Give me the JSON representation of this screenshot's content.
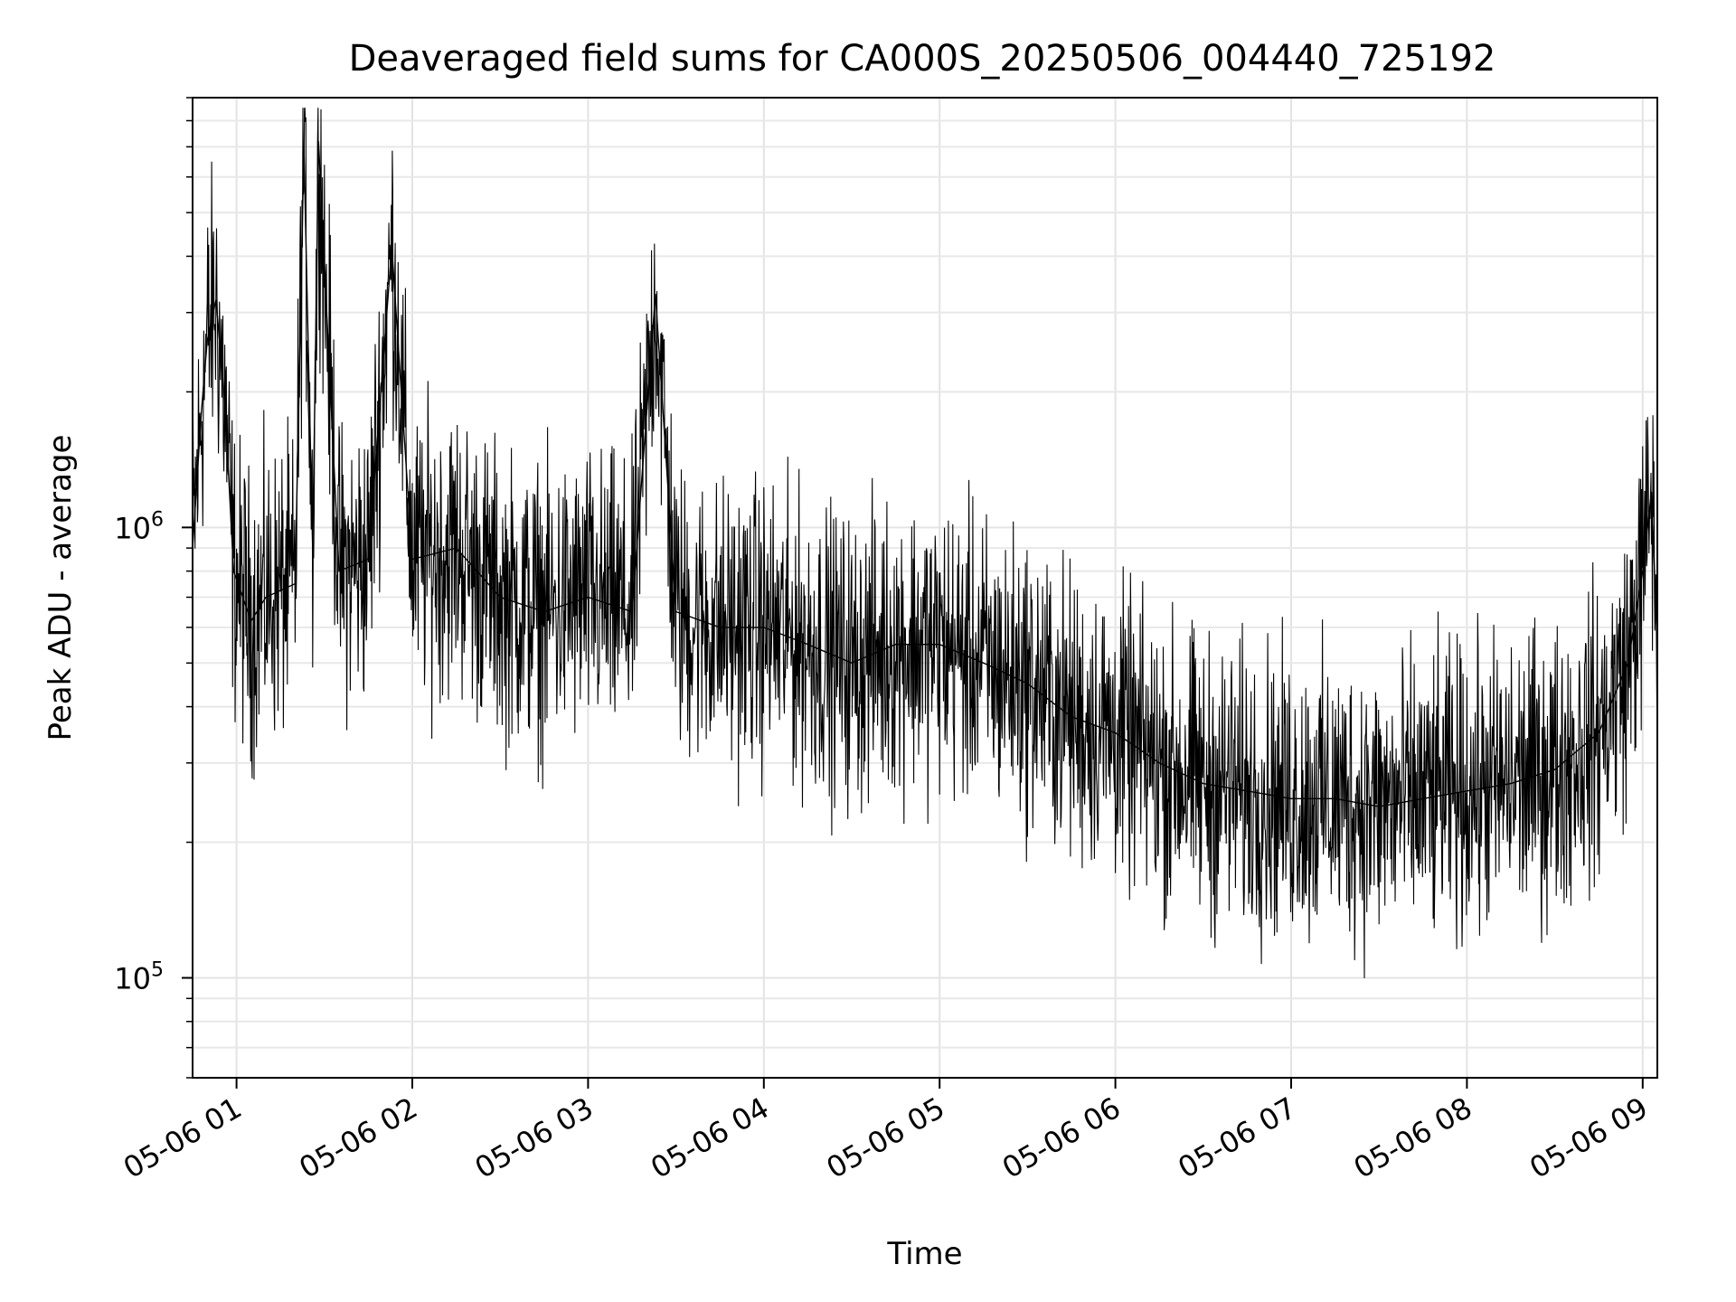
{
  "chart_data": {
    "type": "line",
    "title": "Deaveraged field sums for CA000S_20250506_004440_725192",
    "xlabel": "Time",
    "ylabel": "Peak ADU - average",
    "x_scale": "time",
    "y_scale": "log",
    "xlim": [
      "2025-05-06 00:45",
      "2025-05-06 09:05"
    ],
    "ylim": [
      60000,
      9000000
    ],
    "xticks": [
      "05-06 01",
      "05-06 02",
      "05-06 03",
      "05-06 04",
      "05-06 05",
      "05-06 06",
      "05-06 07",
      "05-06 08",
      "05-06 09"
    ],
    "yticks": [
      {
        "base": "10",
        "exp": "5",
        "value": 100000
      },
      {
        "base": "10",
        "exp": "6",
        "value": 1000000
      }
    ],
    "grid": true,
    "line_color": "#000000",
    "series": [
      {
        "values": [
          [
            "2025-05-06 00:45",
            900000
          ],
          [
            "2025-05-06 00:48",
            1800000
          ],
          [
            "2025-05-06 00:50",
            2600000
          ],
          [
            "2025-05-06 00:53",
            3200000
          ],
          [
            "2025-05-06 00:56",
            1900000
          ],
          [
            "2025-05-06 00:59",
            800000
          ],
          [
            "2025-05-06 01:05",
            620000
          ],
          [
            "2025-05-06 01:10",
            700000
          ],
          [
            "2025-05-06 01:20",
            750000
          ],
          [
            "2025-05-06 01:23",
            7000000
          ],
          [
            "2025-05-06 01:26",
            900000
          ],
          [
            "2025-05-06 01:28",
            7200000
          ],
          [
            "2025-05-06 01:35",
            800000
          ],
          [
            "2025-05-06 01:45",
            850000
          ],
          [
            "2025-05-06 01:53",
            4200000
          ],
          [
            "2025-05-06 02:00",
            850000
          ],
          [
            "2025-05-06 02:15",
            900000
          ],
          [
            "2025-05-06 02:30",
            700000
          ],
          [
            "2025-05-06 02:45",
            650000
          ],
          [
            "2025-05-06 03:00",
            700000
          ],
          [
            "2025-05-06 03:15",
            650000
          ],
          [
            "2025-05-06 03:23",
            3300000
          ],
          [
            "2025-05-06 03:30",
            650000
          ],
          [
            "2025-05-06 03:45",
            600000
          ],
          [
            "2025-05-06 04:00",
            600000
          ],
          [
            "2025-05-06 04:15",
            550000
          ],
          [
            "2025-05-06 04:30",
            500000
          ],
          [
            "2025-05-06 04:45",
            550000
          ],
          [
            "2025-05-06 05:00",
            550000
          ],
          [
            "2025-05-06 05:15",
            500000
          ],
          [
            "2025-05-06 05:30",
            450000
          ],
          [
            "2025-05-06 05:45",
            380000
          ],
          [
            "2025-05-06 06:00",
            350000
          ],
          [
            "2025-05-06 06:15",
            300000
          ],
          [
            "2025-05-06 06:30",
            270000
          ],
          [
            "2025-05-06 06:45",
            260000
          ],
          [
            "2025-05-06 07:00",
            250000
          ],
          [
            "2025-05-06 07:15",
            250000
          ],
          [
            "2025-05-06 07:30",
            240000
          ],
          [
            "2025-05-06 07:45",
            250000
          ],
          [
            "2025-05-06 08:00",
            260000
          ],
          [
            "2025-05-06 08:15",
            270000
          ],
          [
            "2025-05-06 08:30",
            290000
          ],
          [
            "2025-05-06 08:45",
            350000
          ],
          [
            "2025-05-06 08:55",
            500000
          ],
          [
            "2025-05-06 09:00",
            800000
          ],
          [
            "2025-05-06 09:03",
            1200000
          ],
          [
            "2025-05-06 09:05",
            550000
          ]
        ]
      }
    ]
  }
}
